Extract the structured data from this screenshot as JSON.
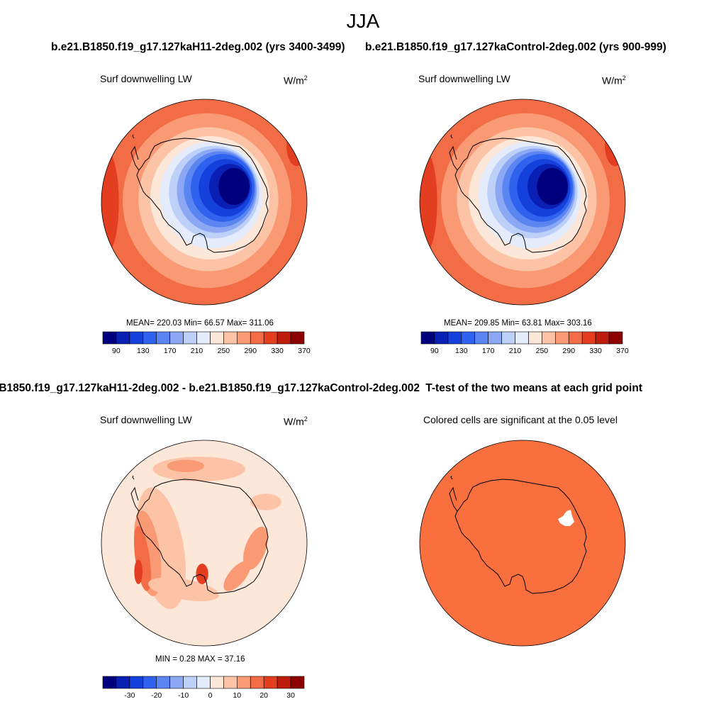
{
  "figure": {
    "season": "JJA",
    "left_case": "b.e21.B1850.f19_g17.127kaH11-2deg.002 (yrs 3400-3499)",
    "right_case": "b.e21.B1850.f19_g17.127kaControl-2deg.002 (yrs 900-999)",
    "diff_title": "B1850.f19_g17.127kaH11-2deg.002 - b.e21.B1850.f19_g17.127kaControl-2deg.002",
    "ttest_title": "T-test of the two means at each grid point"
  },
  "panels": {
    "p1": {
      "variable": "Surf downwelling LW",
      "units": "W/m",
      "units_sup": "2",
      "stats": "MEAN= 220.03  Min=  66.57  Max= 311.06"
    },
    "p2": {
      "variable": "Surf downwelling LW",
      "units": "W/m",
      "units_sup": "2",
      "stats": "MEAN= 209.85  Min=  63.81  Max= 303.16"
    },
    "p3": {
      "variable": "Surf downwelling LW",
      "units": "W/m",
      "units_sup": "2",
      "stats": "MIN =   0.28 MAX =  37.16"
    },
    "p4": {
      "note": "Colored cells are significant at the 0.05 level"
    }
  },
  "colors": {
    "abs_scale": [
      "#00007f",
      "#0a1fb4",
      "#1440dc",
      "#2f62ee",
      "#5b86f2",
      "#8ca8f5",
      "#bdd0f8",
      "#e4ecfb",
      "#fde7d8",
      "#fcc3a6",
      "#f99a74",
      "#f26c45",
      "#e23e1f",
      "#be1d0e",
      "#8c0000"
    ],
    "diff_scale": [
      "#00007f",
      "#0a1fb4",
      "#1440dc",
      "#2f62ee",
      "#5b86f2",
      "#8ca8f5",
      "#bdd0f8",
      "#e4ecfb",
      "#fde7d8",
      "#fcc3a6",
      "#f99a74",
      "#f26c45",
      "#e23e1f",
      "#be1d0e",
      "#8c0000"
    ],
    "significant": "#f9703e"
  },
  "chart_data": [
    {
      "type": "heatmap",
      "title": "Surf downwelling LW",
      "units": "W/m2",
      "projection": "south-polar-stereographic",
      "colorbar_ticks": [
        "90",
        "130",
        "170",
        "210",
        "250",
        "290",
        "330",
        "370"
      ],
      "stats": {
        "mean": 220.03,
        "min": 66.57,
        "max": 311.06
      }
    },
    {
      "type": "heatmap",
      "title": "Surf downwelling LW",
      "units": "W/m2",
      "projection": "south-polar-stereographic",
      "colorbar_ticks": [
        "90",
        "130",
        "170",
        "210",
        "250",
        "290",
        "330",
        "370"
      ],
      "stats": {
        "mean": 209.85,
        "min": 63.81,
        "max": 303.16
      }
    },
    {
      "type": "heatmap",
      "title": "Surf downwelling LW",
      "units": "W/m2",
      "projection": "south-polar-stereographic",
      "colorbar_ticks": [
        "-30",
        "-20",
        "-10",
        "0",
        "10",
        "20",
        "30"
      ],
      "stats": {
        "min": 0.28,
        "max": 37.16
      }
    },
    {
      "type": "heatmap",
      "title": "Colored cells are significant at the 0.05 level",
      "projection": "south-polar-stereographic",
      "significance_level": 0.05
    }
  ]
}
